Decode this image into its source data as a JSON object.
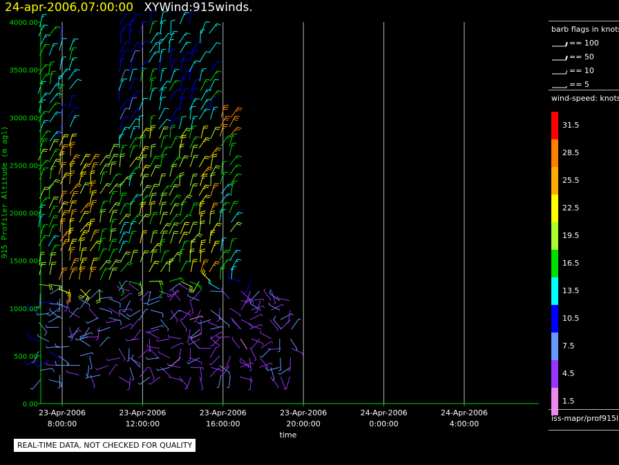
{
  "header": {
    "date": "24-apr-2006,07:00:00",
    "title": "XYWind:915winds."
  },
  "legend": {
    "flags_title": "barb flags in knots",
    "flags": [
      {
        "label": "== 100",
        "value": 100
      },
      {
        "label": "== 50",
        "value": 50
      },
      {
        "label": "== 10",
        "value": 10
      },
      {
        "label": "== 5",
        "value": 5
      }
    ],
    "speed_title": "wind-speed: knots",
    "colorbar": [
      {
        "label": "31.5",
        "color": "#ff0000"
      },
      {
        "label": "28.5",
        "color": "#ff8000"
      },
      {
        "label": "25.5",
        "color": "#ffaa00"
      },
      {
        "label": "22.5",
        "color": "#ffff00"
      },
      {
        "label": "19.5",
        "color": "#aaff33"
      },
      {
        "label": "16.5",
        "color": "#00dd00"
      },
      {
        "label": "13.5",
        "color": "#00ffff"
      },
      {
        "label": "10.5",
        "color": "#0000ff"
      },
      {
        "label": "7.5",
        "color": "#6699ff"
      },
      {
        "label": "4.5",
        "color": "#9933ff"
      },
      {
        "label": "1.5",
        "color": "#ee88ee"
      }
    ],
    "source": "iss-mapr/prof915l"
  },
  "footer": {
    "qc_note": "REAL-TIME DATA, NOT CHECKED FOR QUALITY"
  },
  "chart_data": {
    "type": "wind-barb",
    "xlabel": "time",
    "ylabel": "915 Profiler Altitude (m agl)",
    "y_ticks": [
      "0.00",
      "500.00",
      "1000.00",
      "1500.00",
      "2000.00",
      "2500.00",
      "3000.00",
      "3500.00",
      "4000.00"
    ],
    "ylim": [
      0,
      4000
    ],
    "x_ticks": [
      {
        "date": "23-Apr-2006",
        "time": "8:00:00",
        "hours": 0
      },
      {
        "date": "23-Apr-2006",
        "time": "12:00:00",
        "hours": 4
      },
      {
        "date": "23-Apr-2006",
        "time": "16:00:00",
        "hours": 8
      },
      {
        "date": "23-Apr-2006",
        "time": "20:00:00",
        "hours": 12
      },
      {
        "date": "24-Apr-2006",
        "time": "0:00:00",
        "hours": 16
      },
      {
        "date": "24-Apr-2006",
        "time": "4:00:00",
        "hours": 20
      }
    ],
    "grid": "vertical",
    "columns": [
      {
        "time": "23-Apr-2006 7:00",
        "top_m": 4000,
        "bottom_m": 250,
        "speed_low_kt": 8,
        "speed_mid_kt": 17,
        "speed_high_kt": 15
      },
      {
        "time": "23-Apr-2006 8:00",
        "top_m": 3800,
        "bottom_m": 300,
        "speed_low_kt": 6,
        "speed_mid_kt": 24,
        "speed_high_kt": 13
      },
      {
        "time": "23-Apr-2006 9:00",
        "top_m": 2500,
        "bottom_m": 300,
        "speed_low_kt": 6,
        "speed_mid_kt": 23,
        "speed_high_kt": 12
      },
      {
        "time": "23-Apr-2006 10:00",
        "top_m": 2600,
        "bottom_m": 300,
        "speed_low_kt": 7,
        "speed_mid_kt": 18,
        "speed_high_kt": 12
      },
      {
        "time": "23-Apr-2006 11:00",
        "top_m": 4000,
        "bottom_m": 280,
        "speed_low_kt": 5,
        "speed_mid_kt": 16,
        "speed_high_kt": 11
      },
      {
        "time": "23-Apr-2006 12:00",
        "top_m": 4000,
        "bottom_m": 280,
        "speed_low_kt": 6,
        "speed_mid_kt": 20,
        "speed_high_kt": 14
      },
      {
        "time": "23-Apr-2006 13:00",
        "top_m": 4000,
        "bottom_m": 280,
        "speed_low_kt": 5,
        "speed_mid_kt": 18,
        "speed_high_kt": 13
      },
      {
        "time": "23-Apr-2006 14:00",
        "top_m": 4000,
        "bottom_m": 280,
        "speed_low_kt": 4,
        "speed_mid_kt": 19,
        "speed_high_kt": 12
      },
      {
        "time": "23-Apr-2006 15:00",
        "top_m": 3950,
        "bottom_m": 280,
        "speed_low_kt": 5,
        "speed_mid_kt": 23,
        "speed_high_kt": 13
      },
      {
        "time": "23-Apr-2006 16:00",
        "top_m": 3050,
        "bottom_m": 300,
        "speed_low_kt": 5,
        "speed_mid_kt": 16,
        "speed_high_kt": 27
      },
      {
        "time": "23-Apr-2006 17:00",
        "top_m": 1350,
        "bottom_m": 280,
        "speed_low_kt": 4,
        "speed_mid_kt": 9,
        "speed_high_kt": 10
      },
      {
        "time": "23-Apr-2006 18:00",
        "top_m": 1200,
        "bottom_m": 280,
        "speed_low_kt": 5,
        "speed_mid_kt": 9,
        "speed_high_kt": 10
      },
      {
        "time": "23-Apr-2006 19:00",
        "top_m": 1150,
        "bottom_m": 280,
        "speed_low_kt": 6,
        "speed_mid_kt": 10,
        "speed_high_kt": 11
      }
    ]
  }
}
